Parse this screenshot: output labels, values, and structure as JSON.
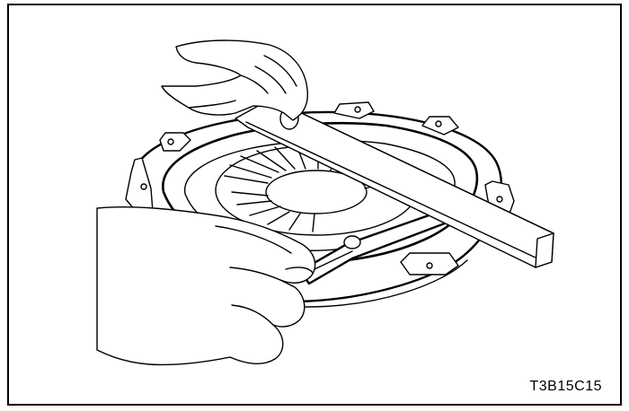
{
  "figure": {
    "code": "T3B15C15"
  },
  "colors": {
    "line": "#000000",
    "background": "#ffffff"
  }
}
